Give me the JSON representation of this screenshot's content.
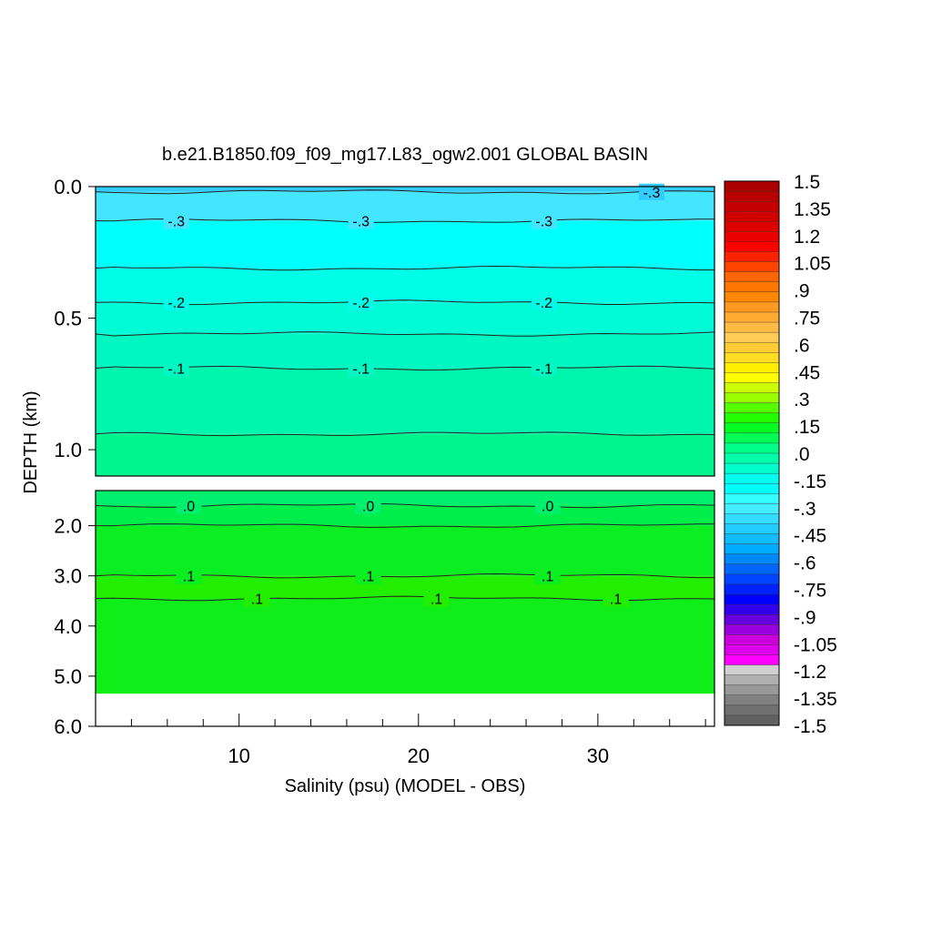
{
  "chart_data": {
    "type": "heatmap",
    "title": "b.e21.B1850.f09_f09_mg17.L83_ogw2.001 GLOBAL BASIN",
    "xlabel": "Salinity (psu) (MODEL - OBS)",
    "ylabel": "DEPTH (km)",
    "xlim": [
      2,
      36.5
    ],
    "x_ticks": [
      10,
      20,
      30
    ],
    "upper_panel": {
      "ylim": [
        0.0,
        1.1
      ],
      "y_ticks": [
        "0.0",
        "0.5",
        "1.0"
      ],
      "bands": [
        {
          "from": 0.0,
          "to": 0.02,
          "color": "#33ccff"
        },
        {
          "from": 0.02,
          "to": 0.13,
          "color": "#44e6ff"
        },
        {
          "from": 0.13,
          "to": 0.31,
          "color": "#00ffff"
        },
        {
          "from": 0.31,
          "to": 0.44,
          "color": "#00fde6"
        },
        {
          "from": 0.44,
          "to": 0.56,
          "color": "#00fbd6"
        },
        {
          "from": 0.56,
          "to": 0.69,
          "color": "#00f7c2"
        },
        {
          "from": 0.69,
          "to": 0.94,
          "color": "#00f5ad"
        },
        {
          "from": 0.94,
          "to": 1.1,
          "color": "#00f58e"
        }
      ],
      "contours": [
        {
          "depth": 0.02,
          "label": "-.3",
          "label_x": [
            33
          ]
        },
        {
          "depth": 0.13,
          "label": "-.3",
          "label_x": [
            6.5,
            16.8,
            27
          ]
        },
        {
          "depth": 0.31,
          "label": "",
          "label_x": []
        },
        {
          "depth": 0.44,
          "label": "-.2",
          "label_x": [
            6.5,
            16.8,
            27
          ]
        },
        {
          "depth": 0.56,
          "label": "",
          "label_x": []
        },
        {
          "depth": 0.69,
          "label": "-.1",
          "label_x": [
            6.5,
            16.8,
            27
          ]
        },
        {
          "depth": 0.94,
          "label": "",
          "label_x": []
        }
      ]
    },
    "lower_panel": {
      "ylim": [
        1.3,
        6.0
      ],
      "y_ticks": [
        "2.0",
        "3.0",
        "4.0",
        "5.0",
        "6.0"
      ],
      "bands": [
        {
          "from": 1.3,
          "to": 1.6,
          "color": "#00f06e"
        },
        {
          "from": 1.6,
          "to": 2.0,
          "color": "#00ee4a"
        },
        {
          "from": 2.0,
          "to": 3.0,
          "color": "#0aee22"
        },
        {
          "from": 3.0,
          "to": 3.45,
          "color": "#22ee00"
        },
        {
          "from": 3.45,
          "to": 5.35,
          "color": "#10ee1a"
        }
      ],
      "blank_from": 5.35,
      "contours": [
        {
          "depth": 1.6,
          "label": ".0",
          "label_x": [
            7.2,
            17.2,
            27.2
          ]
        },
        {
          "depth": 2.0,
          "label": "",
          "label_x": []
        },
        {
          "depth": 3.0,
          "label": ".1",
          "label_x": [
            7.2,
            17.2,
            27.2
          ]
        },
        {
          "depth": 3.45,
          "label": ".1",
          "label_x": [
            11,
            21,
            31
          ]
        }
      ]
    },
    "colorbar": {
      "labels": [
        "1.5",
        "1.35",
        "1.2",
        "1.05",
        ".9",
        ".75",
        ".6",
        ".45",
        ".3",
        ".15",
        ".0",
        "-.15",
        "-.3",
        "-.45",
        "-.6",
        "-.75",
        "-.9",
        "-1.05",
        "-1.2",
        "-1.35",
        "-1.5"
      ],
      "colors": [
        "#aa0000",
        "#b80000",
        "#c40000",
        "#d00000",
        "#dd0000",
        "#ea0000",
        "#ff0000",
        "#ff2200",
        "#ff4400",
        "#ff6600",
        "#ff7700",
        "#ff8800",
        "#ff9922",
        "#ffaa33",
        "#ffbb44",
        "#ffcc55",
        "#ffcc33",
        "#ffdd22",
        "#ffee00",
        "#ffff00",
        "#ccff00",
        "#99ff00",
        "#55ff00",
        "#22ff00",
        "#00ff22",
        "#00ff55",
        "#00ff88",
        "#00ffaa",
        "#00ffcc",
        "#00ffee",
        "#00ffff",
        "#33ffff",
        "#44eeff",
        "#33ddff",
        "#22ccff",
        "#11bbff",
        "#00aaff",
        "#0088ff",
        "#0066ff",
        "#0044ff",
        "#0022ff",
        "#0000ff",
        "#3300ee",
        "#6600dd",
        "#9900dd",
        "#cc00dd",
        "#dd00ee",
        "#ff00ff",
        "#d0d0d0",
        "#b0b0b0",
        "#989898",
        "#808080",
        "#707070",
        "#606060"
      ]
    }
  }
}
